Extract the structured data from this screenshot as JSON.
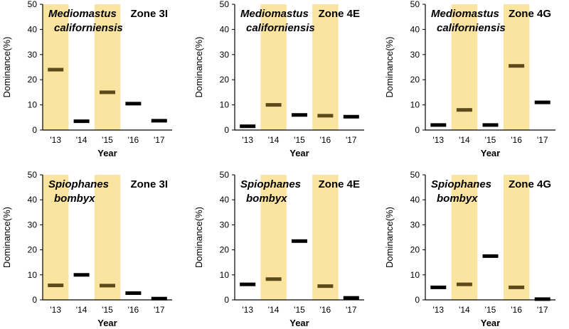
{
  "colors": {
    "shade": "#fbe3a0",
    "mark_default": "#000000",
    "mark_shaded": "#5c4a1a",
    "axis": "#000000"
  },
  "chart_data": [
    {
      "type": "dot",
      "species": [
        "Mediomastus",
        "californiensis"
      ],
      "zone": "Zone 3I",
      "categories": [
        "'13",
        "'14",
        "'15",
        "'16",
        "'17"
      ],
      "values": [
        24,
        3.5,
        15,
        10.5,
        3.7
      ],
      "shaded": [
        true,
        false,
        true,
        false,
        false
      ],
      "xlabel": "Year",
      "ylabel": "Dominance(%)",
      "ylim": [
        0,
        50
      ],
      "yticks": [
        "0",
        "10",
        "20",
        "30",
        "40",
        "50"
      ]
    },
    {
      "type": "dot",
      "species": [
        "Mediomastus",
        "californiensis"
      ],
      "zone": "Zone 4E",
      "categories": [
        "'13",
        "'14",
        "'15",
        "'16",
        "'17"
      ],
      "values": [
        1.5,
        10,
        6,
        5.7,
        5.3
      ],
      "shaded": [
        false,
        true,
        false,
        true,
        false
      ],
      "xlabel": "Year",
      "ylabel": "Dominance(%)",
      "ylim": [
        0,
        50
      ],
      "yticks": [
        "0",
        "10",
        "20",
        "30",
        "40",
        "50"
      ]
    },
    {
      "type": "dot",
      "species": [
        "Mediomastus",
        "californiensis"
      ],
      "zone": "Zone 4G",
      "categories": [
        "'13",
        "'14",
        "'15",
        "'16",
        "'17"
      ],
      "values": [
        2,
        8,
        2,
        25.5,
        11
      ],
      "shaded": [
        false,
        true,
        false,
        true,
        false
      ],
      "xlabel": "Year",
      "ylabel": "Dominance(%)",
      "ylim": [
        0,
        50
      ],
      "yticks": [
        "0",
        "10",
        "20",
        "30",
        "40",
        "50"
      ]
    },
    {
      "type": "dot",
      "species": [
        "Spiophanes",
        "bombyx"
      ],
      "zone": "Zone 3I",
      "categories": [
        "'13",
        "'14",
        "'15",
        "'16",
        "'17"
      ],
      "values": [
        5.8,
        10,
        5.7,
        2.7,
        0.5
      ],
      "shaded": [
        true,
        false,
        true,
        false,
        false
      ],
      "xlabel": "Year",
      "ylabel": "Dominance(%)",
      "ylim": [
        0,
        50
      ],
      "yticks": [
        "0",
        "10",
        "20",
        "30",
        "40",
        "50"
      ]
    },
    {
      "type": "dot",
      "species": [
        "Spiophanes",
        "bombyx"
      ],
      "zone": "Zone 4E",
      "categories": [
        "'13",
        "'14",
        "'15",
        "'16",
        "'17"
      ],
      "values": [
        6.2,
        8.3,
        23.5,
        5.5,
        0.8
      ],
      "shaded": [
        false,
        true,
        false,
        true,
        false
      ],
      "xlabel": "Year",
      "ylabel": "Dominance(%)",
      "ylim": [
        0,
        50
      ],
      "yticks": [
        "0",
        "10",
        "20",
        "30",
        "40",
        "50"
      ]
    },
    {
      "type": "dot",
      "species": [
        "Spiophanes",
        "bombyx"
      ],
      "zone": "Zone 4G",
      "categories": [
        "'13",
        "'14",
        "'15",
        "'16",
        "'17"
      ],
      "values": [
        5,
        6.2,
        17.5,
        5,
        0.3
      ],
      "shaded": [
        false,
        true,
        false,
        true,
        false
      ],
      "xlabel": "Year",
      "ylabel": "Dominance(%)",
      "ylim": [
        0,
        50
      ],
      "yticks": [
        "0",
        "10",
        "20",
        "30",
        "40",
        "50"
      ]
    }
  ]
}
